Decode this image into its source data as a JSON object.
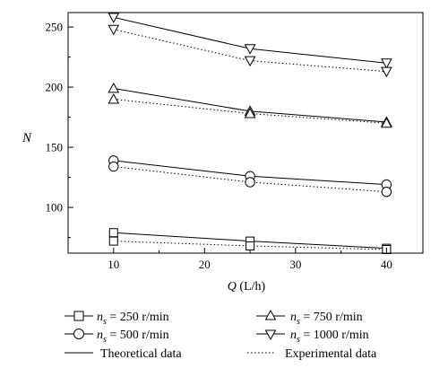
{
  "chart_data": {
    "type": "line",
    "xlabel": "Q (L/h)",
    "ylabel": "N",
    "xlim": [
      5,
      44
    ],
    "ylim": [
      62,
      262
    ],
    "x_ticks": [
      10,
      20,
      30,
      40
    ],
    "y_ticks": [
      100,
      150,
      200,
      250
    ],
    "x": [
      10,
      25,
      40
    ],
    "grid": false,
    "legend_position": "bottom",
    "series": [
      {
        "group": "250",
        "kind": "theoretical",
        "marker": "square",
        "values": [
          79,
          72,
          66
        ]
      },
      {
        "group": "250",
        "kind": "experimental",
        "marker": "square",
        "values": [
          72,
          68,
          65
        ]
      },
      {
        "group": "500",
        "kind": "theoretical",
        "marker": "circle",
        "values": [
          139,
          126,
          119
        ]
      },
      {
        "group": "500",
        "kind": "experimental",
        "marker": "circle",
        "values": [
          134,
          121,
          113
        ]
      },
      {
        "group": "750",
        "kind": "theoretical",
        "marker": "triangle-up",
        "values": [
          199,
          180,
          171
        ]
      },
      {
        "group": "750",
        "kind": "experimental",
        "marker": "triangle-up",
        "values": [
          190,
          178,
          170
        ]
      },
      {
        "group": "1000",
        "kind": "theoretical",
        "marker": "triangle-down",
        "values": [
          258,
          232,
          220
        ]
      },
      {
        "group": "1000",
        "kind": "experimental",
        "marker": "triangle-down",
        "values": [
          248,
          222,
          213
        ]
      }
    ],
    "legend": {
      "s250": {
        "prefix": "n",
        "subscript": "s",
        "value": " = 250 r/min"
      },
      "s500": {
        "prefix": "n",
        "subscript": "s",
        "value": " = 500 r/min"
      },
      "s750": {
        "prefix": "n",
        "subscript": "s",
        "value": " = 750 r/min"
      },
      "s1000": {
        "prefix": "n",
        "subscript": "s",
        "value": " = 1000 r/min"
      },
      "theoretical": "Theoretical data",
      "experimental": "Experimental data"
    }
  }
}
